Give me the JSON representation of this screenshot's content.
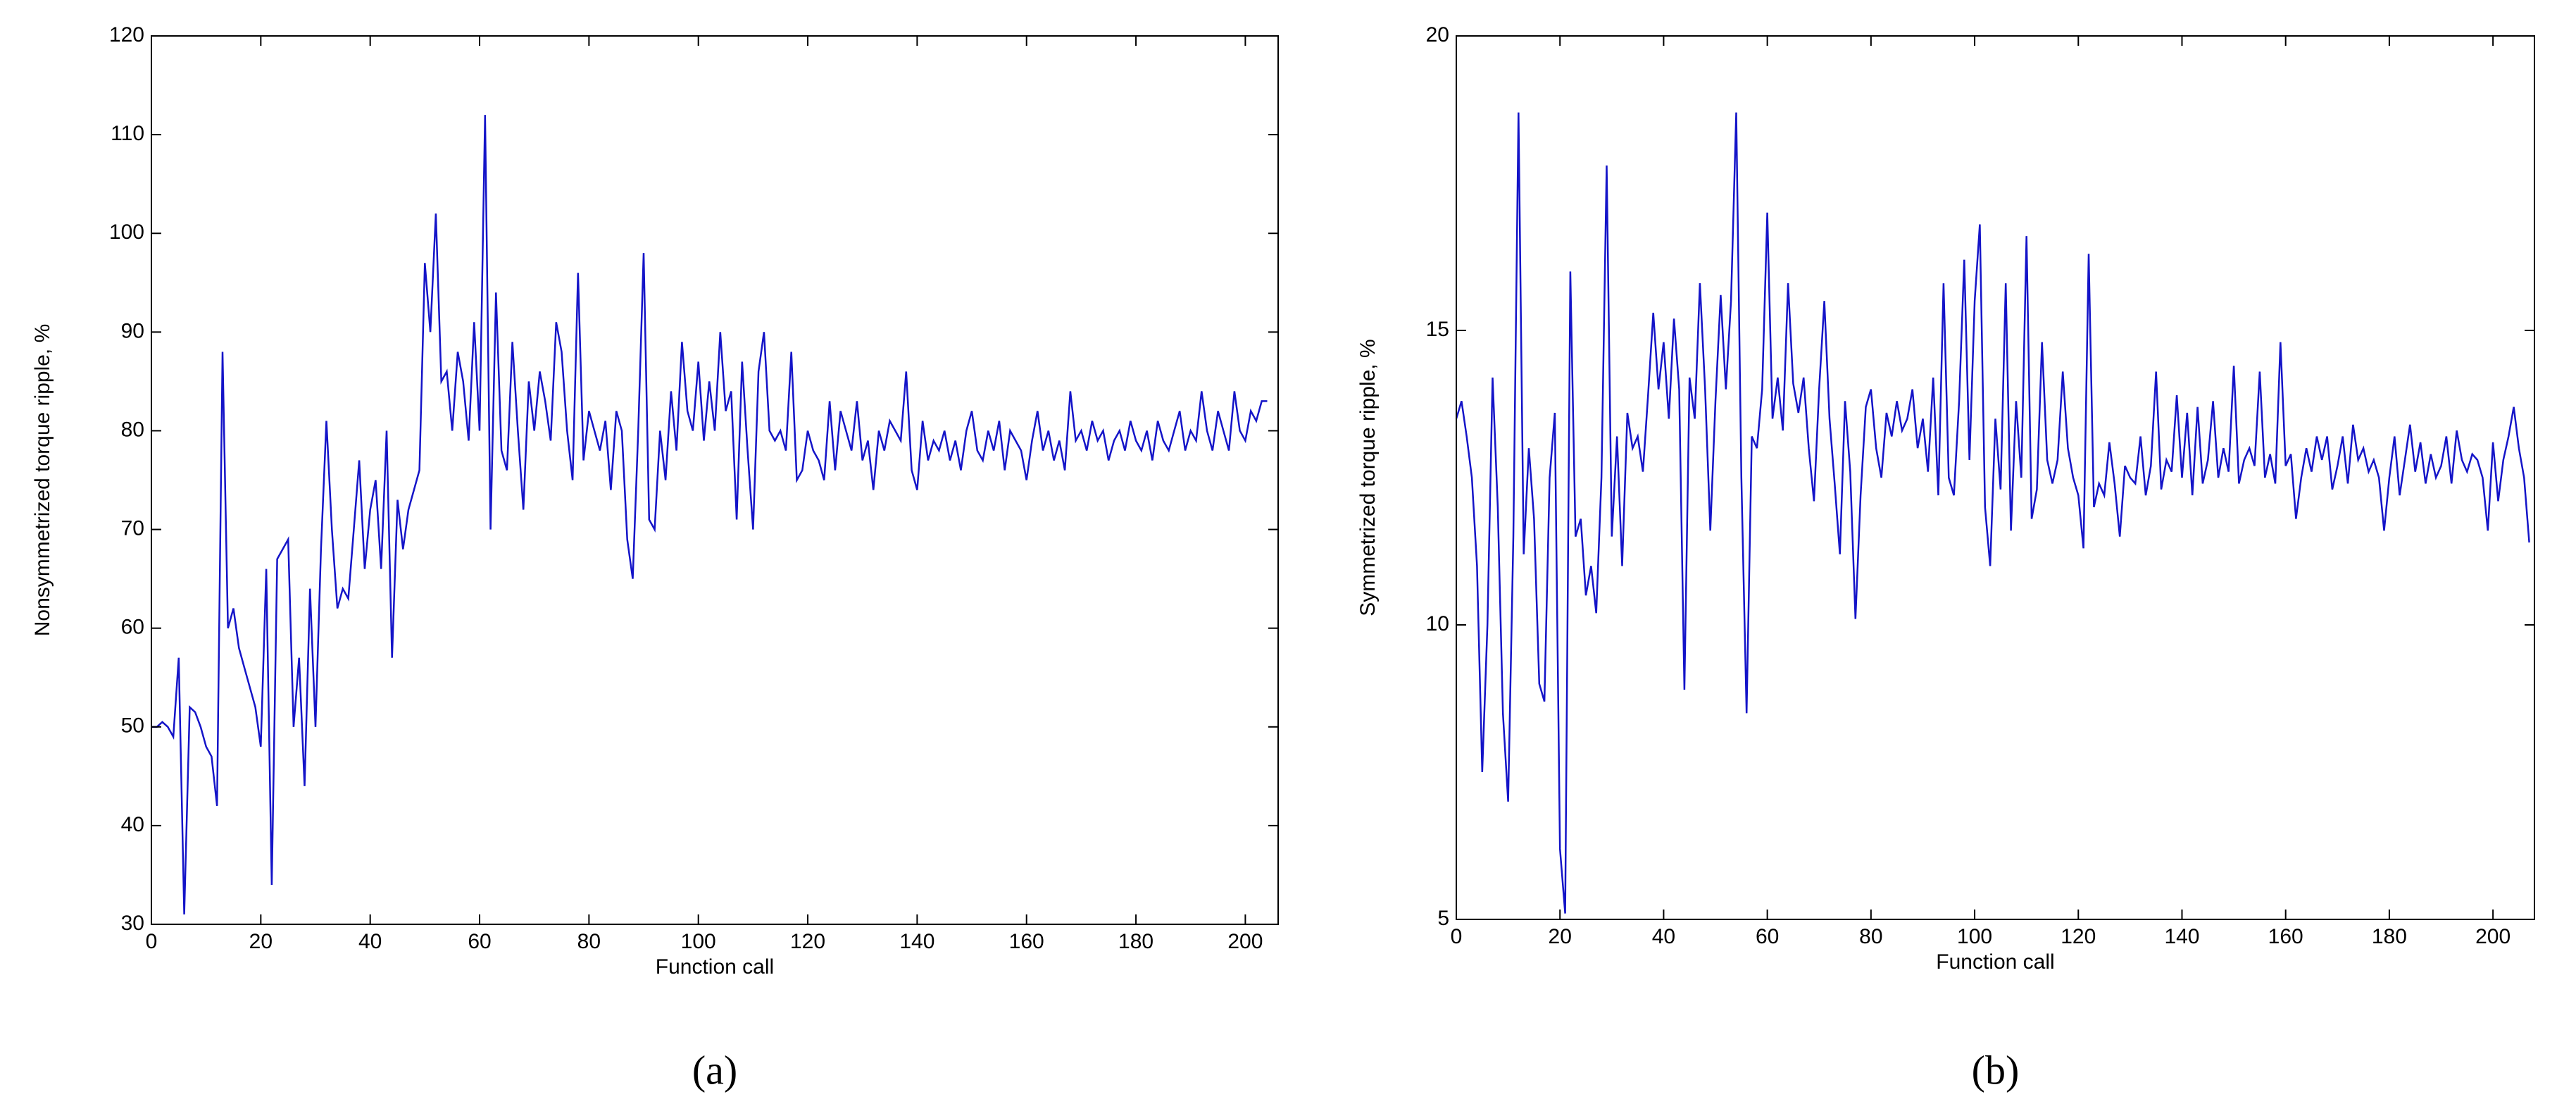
{
  "chart_data": [
    {
      "type": "line",
      "xlabel": "Function call",
      "ylabel": "Nonsymmetrized torque ripple, %",
      "caption": "(a)",
      "xlim": [
        0,
        206
      ],
      "ylim": [
        30,
        120
      ],
      "xticks": [
        0,
        20,
        40,
        60,
        80,
        100,
        120,
        140,
        160,
        180,
        200
      ],
      "yticks": [
        30,
        40,
        50,
        60,
        70,
        80,
        90,
        100,
        110,
        120
      ],
      "series": [
        {
          "color": "#1414c8",
          "x": [
            0,
            1,
            2,
            3,
            4,
            5,
            6,
            7,
            8,
            9,
            10,
            11,
            12,
            13,
            14,
            15,
            16,
            17,
            18,
            19,
            20,
            21,
            22,
            23,
            24,
            25,
            26,
            27,
            28,
            29,
            30,
            31,
            32,
            33,
            34,
            35,
            36,
            37,
            38,
            39,
            40,
            41,
            42,
            43,
            44,
            45,
            46,
            47,
            48,
            49,
            50,
            51,
            52,
            53,
            54,
            55,
            56,
            57,
            58,
            59,
            60,
            61,
            62,
            63,
            64,
            65,
            66,
            67,
            68,
            69,
            70,
            71,
            72,
            73,
            74,
            75,
            76,
            77,
            78,
            79,
            80,
            81,
            82,
            83,
            84,
            85,
            86,
            87,
            88,
            89,
            90,
            91,
            92,
            93,
            94,
            95,
            96,
            97,
            98,
            99,
            100,
            101,
            102,
            103,
            104,
            105,
            106,
            107,
            108,
            109,
            110,
            111,
            112,
            113,
            114,
            115,
            116,
            117,
            118,
            119,
            120,
            121,
            122,
            123,
            124,
            125,
            126,
            127,
            128,
            129,
            130,
            131,
            132,
            133,
            134,
            135,
            136,
            137,
            138,
            139,
            140,
            141,
            142,
            143,
            144,
            145,
            146,
            147,
            148,
            149,
            150,
            151,
            152,
            153,
            154,
            155,
            156,
            157,
            158,
            159,
            160,
            161,
            162,
            163,
            164,
            165,
            166,
            167,
            168,
            169,
            170,
            171,
            172,
            173,
            174,
            175,
            176,
            177,
            178,
            179,
            180,
            181,
            182,
            183,
            184,
            185,
            186,
            187,
            188,
            189,
            190,
            191,
            192,
            193,
            194,
            195,
            196,
            197,
            198,
            199,
            200,
            201,
            202,
            203,
            204
          ],
          "values": [
            50,
            50,
            50.5,
            50,
            49,
            57,
            31,
            52,
            51.5,
            50,
            48,
            47,
            42,
            88,
            60,
            62,
            58,
            56,
            54,
            52,
            48,
            66,
            34,
            67,
            68,
            69,
            50,
            57,
            44,
            64,
            50,
            68,
            81,
            70,
            62,
            64,
            63,
            70,
            77,
            66,
            72,
            75,
            66,
            80,
            57,
            73,
            68,
            72,
            74,
            76,
            97,
            90,
            102,
            85,
            86,
            80,
            88,
            85,
            79,
            91,
            80,
            112,
            70,
            94,
            78,
            76,
            89,
            80,
            72,
            85,
            80,
            86,
            83,
            79,
            91,
            88,
            80,
            75,
            96,
            77,
            82,
            80,
            78,
            81,
            74,
            82,
            80,
            69,
            65,
            80,
            98,
            71,
            70,
            80,
            75,
            84,
            78,
            89,
            82,
            80,
            87,
            79,
            85,
            80,
            90,
            82,
            84,
            71,
            87,
            78,
            70,
            86,
            90,
            80,
            79,
            80,
            78,
            88,
            75,
            76,
            80,
            78,
            77,
            75,
            83,
            76,
            82,
            80,
            78,
            83,
            77,
            79,
            74,
            80,
            78,
            81,
            80,
            79,
            86,
            76,
            74,
            81,
            77,
            79,
            78,
            80,
            77,
            79,
            76,
            80,
            82,
            78,
            77,
            80,
            78,
            81,
            76,
            80,
            79,
            78,
            75,
            79,
            82,
            78,
            80,
            77,
            79,
            76,
            84,
            79,
            80,
            78,
            81,
            79,
            80,
            77,
            79,
            80,
            78,
            81,
            79,
            78,
            80,
            77,
            81,
            79,
            78,
            80,
            82,
            78,
            80,
            79,
            84,
            80,
            78,
            82,
            80,
            78,
            84,
            80,
            79,
            82,
            81,
            83,
            83
          ]
        }
      ]
    },
    {
      "type": "line",
      "xlabel": "Function call",
      "ylabel": "Symmetrized torque ripple, %",
      "caption": "(b)",
      "xlim": [
        0,
        208
      ],
      "ylim": [
        5,
        20
      ],
      "xticks": [
        0,
        20,
        40,
        60,
        80,
        100,
        120,
        140,
        160,
        180,
        200
      ],
      "yticks": [
        5,
        10,
        15,
        20
      ],
      "series": [
        {
          "color": "#1414c8",
          "x": [
            0,
            1,
            2,
            3,
            4,
            5,
            6,
            7,
            8,
            9,
            10,
            11,
            12,
            13,
            14,
            15,
            16,
            17,
            18,
            19,
            20,
            21,
            22,
            23,
            24,
            25,
            26,
            27,
            28,
            29,
            30,
            31,
            32,
            33,
            34,
            35,
            36,
            37,
            38,
            39,
            40,
            41,
            42,
            43,
            44,
            45,
            46,
            47,
            48,
            49,
            50,
            51,
            52,
            53,
            54,
            55,
            56,
            57,
            58,
            59,
            60,
            61,
            62,
            63,
            64,
            65,
            66,
            67,
            68,
            69,
            70,
            71,
            72,
            73,
            74,
            75,
            76,
            77,
            78,
            79,
            80,
            81,
            82,
            83,
            84,
            85,
            86,
            87,
            88,
            89,
            90,
            91,
            92,
            93,
            94,
            95,
            96,
            97,
            98,
            99,
            100,
            101,
            102,
            103,
            104,
            105,
            106,
            107,
            108,
            109,
            110,
            111,
            112,
            113,
            114,
            115,
            116,
            117,
            118,
            119,
            120,
            121,
            122,
            123,
            124,
            125,
            126,
            127,
            128,
            129,
            130,
            131,
            132,
            133,
            134,
            135,
            136,
            137,
            138,
            139,
            140,
            141,
            142,
            143,
            144,
            145,
            146,
            147,
            148,
            149,
            150,
            151,
            152,
            153,
            154,
            155,
            156,
            157,
            158,
            159,
            160,
            161,
            162,
            163,
            164,
            165,
            166,
            167,
            168,
            169,
            170,
            171,
            172,
            173,
            174,
            175,
            176,
            177,
            178,
            179,
            180,
            181,
            182,
            183,
            184,
            185,
            186,
            187,
            188,
            189,
            190,
            191,
            192,
            193,
            194,
            195,
            196,
            197,
            198,
            199,
            200,
            201,
            202,
            203,
            204,
            205,
            206,
            207
          ],
          "values": [
            13.5,
            13.8,
            13.2,
            12.5,
            11,
            7.5,
            10,
            14.2,
            12,
            8.5,
            7,
            11.5,
            18.7,
            11.2,
            13,
            11.8,
            9,
            8.7,
            12.5,
            13.6,
            6.2,
            5.1,
            16,
            11.5,
            11.8,
            10.5,
            11,
            10.2,
            12.5,
            17.8,
            11.5,
            13.2,
            11,
            13.6,
            13,
            13.2,
            12.6,
            13.9,
            15.3,
            14,
            14.8,
            13.5,
            15.2,
            14,
            8.9,
            14.2,
            13.5,
            15.8,
            14,
            11.6,
            13.8,
            15.6,
            14,
            15.5,
            18.7,
            12.5,
            8.5,
            13.2,
            13,
            14,
            17,
            13.5,
            14.2,
            13.3,
            15.8,
            14.1,
            13.6,
            14.2,
            13,
            12.1,
            14,
            15.5,
            13.5,
            12.4,
            11.2,
            13.8,
            12.6,
            10.1,
            12.2,
            13.7,
            14,
            13,
            12.5,
            13.6,
            13.2,
            13.8,
            13.3,
            13.5,
            14,
            13,
            13.5,
            12.6,
            14.2,
            12.2,
            15.8,
            12.5,
            12.2,
            13.8,
            16.2,
            12.8,
            15.5,
            16.8,
            12,
            11,
            13.5,
            12.3,
            15.8,
            11.6,
            13.8,
            12.5,
            16.6,
            11.8,
            12.3,
            14.8,
            12.8,
            12.4,
            12.8,
            14.3,
            13,
            12.5,
            12.2,
            11.3,
            16.3,
            12,
            12.4,
            12.2,
            13.1,
            12.4,
            11.5,
            12.7,
            12.5,
            12.4,
            13.2,
            12.2,
            12.7,
            14.3,
            12.3,
            12.8,
            12.6,
            13.9,
            12.5,
            13.6,
            12.2,
            13.7,
            12.4,
            12.8,
            13.8,
            12.5,
            13,
            12.6,
            14.4,
            12.4,
            12.8,
            13,
            12.7,
            14.3,
            12.5,
            12.9,
            12.4,
            14.8,
            12.7,
            12.9,
            11.8,
            12.5,
            13,
            12.6,
            13.2,
            12.8,
            13.2,
            12.3,
            12.7,
            13.2,
            12.4,
            13.4,
            12.8,
            13,
            12.6,
            12.8,
            12.5,
            11.6,
            12.5,
            13.2,
            12.2,
            12.8,
            13.4,
            12.6,
            13.1,
            12.4,
            12.9,
            12.5,
            12.7,
            13.2,
            12.4,
            13.3,
            12.8,
            12.6,
            12.9,
            12.8,
            12.5,
            11.6,
            13.1,
            12.1,
            12.8,
            13.2,
            13.7,
            13,
            12.5,
            11.4
          ]
        }
      ]
    }
  ]
}
